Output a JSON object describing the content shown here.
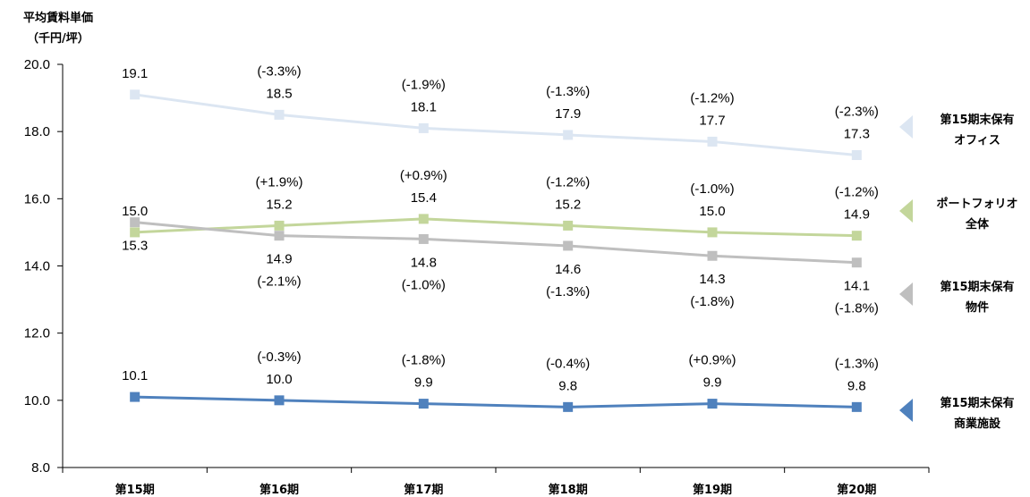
{
  "chart_data": {
    "type": "line",
    "ylabel_lines": [
      "平均賃料単価",
      "（千円/坪）"
    ],
    "ylim": [
      8.0,
      20.0
    ],
    "yticks": [
      "8.0",
      "10.0",
      "12.0",
      "14.0",
      "16.0",
      "18.0",
      "20.0"
    ],
    "yticks_values": [
      8,
      10,
      12,
      14,
      16,
      18,
      20
    ],
    "categories": [
      "第15期",
      "第16期",
      "第17期",
      "第18期",
      "第19期",
      "第20期"
    ],
    "grid": false,
    "legend_position": "right",
    "series": [
      {
        "key": "office",
        "name_lines": [
          "第15期末保有",
          "オフィス"
        ],
        "color": "#dce6f2",
        "values": [
          19.1,
          18.5,
          18.1,
          17.9,
          17.7,
          17.3
        ],
        "labels": [
          "19.1",
          "18.5",
          "18.1",
          "17.9",
          "17.7",
          "17.3"
        ],
        "changes": [
          "",
          "(-3.3%)",
          "(-1.9%)",
          "(-1.3%)",
          "(-1.2%)",
          "(-2.3%)"
        ],
        "label_position": "above"
      },
      {
        "key": "portfolio",
        "name_lines": [
          "ポートフォリオ",
          "全体"
        ],
        "color": "#c3d69b",
        "values": [
          15.0,
          15.2,
          15.4,
          15.2,
          15.0,
          14.9
        ],
        "labels": [
          "15.0",
          "15.2",
          "15.4",
          "15.2",
          "15.0",
          "14.9"
        ],
        "changes": [
          "",
          "(+1.9%)",
          "(+0.9%)",
          "(-1.2%)",
          "(-1.0%)",
          "(-1.2%)"
        ],
        "label_position": "above"
      },
      {
        "key": "property",
        "name_lines": [
          "第15期末保有",
          "物件"
        ],
        "color": "#bfbfbf",
        "values": [
          15.3,
          14.9,
          14.8,
          14.6,
          14.3,
          14.1
        ],
        "labels": [
          "15.3",
          "14.9",
          "14.8",
          "14.6",
          "14.3",
          "14.1"
        ],
        "changes": [
          "",
          "(-2.1%)",
          "(-1.0%)",
          "(-1.3%)",
          "(-1.8%)",
          "(-1.8%)"
        ],
        "label_position": "below"
      },
      {
        "key": "commercial",
        "name_lines": [
          "第15期末保有",
          "商業施設"
        ],
        "color": "#4f81bd",
        "values": [
          10.1,
          10.0,
          9.9,
          9.8,
          9.9,
          9.8
        ],
        "labels": [
          "10.1",
          "10.0",
          "9.9",
          "9.8",
          "9.9",
          "9.8"
        ],
        "changes": [
          "",
          "(-0.3%)",
          "(-1.8%)",
          "(-0.4%)",
          "(+0.9%)",
          "(-1.3%)"
        ],
        "label_position": "above"
      }
    ]
  }
}
